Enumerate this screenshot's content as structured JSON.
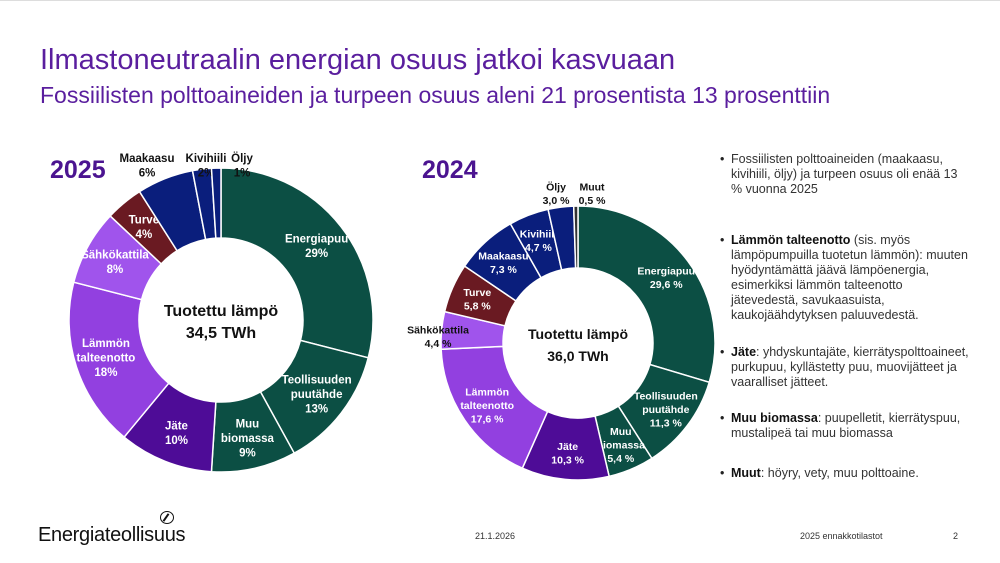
{
  "header": {
    "title": "Ilmastoneutraalin energian osuus jatkoi kasvuaan",
    "subtitle": "Fossiilisten polttoaineiden ja turpeen osuus aleni 21 prosentista 13 prosenttiin"
  },
  "chart_data": [
    {
      "type": "pie",
      "title": "2025",
      "center_label": "Tuotettu lämpö",
      "center_value": "34,5 TWh",
      "unit": "%",
      "slices": [
        {
          "name": "Energiapuu",
          "value": 29,
          "label": "29%",
          "color": "#0c4f44"
        },
        {
          "name": "Teollisuuden puutähde",
          "value": 13,
          "label": "13%",
          "color": "#0c4f44"
        },
        {
          "name": "Muu biomassa",
          "value": 9,
          "label": "9%",
          "color": "#0c4f44"
        },
        {
          "name": "Jäte",
          "value": 10,
          "label": "10%",
          "color": "#4e0c97"
        },
        {
          "name": "Lämmön talteenotto",
          "value": 18,
          "label": "18%",
          "color": "#9240e0"
        },
        {
          "name": "Sähkökattila",
          "value": 8,
          "label": "8%",
          "color": "#a054ec"
        },
        {
          "name": "Turve",
          "value": 4,
          "label": "4%",
          "color": "#6a1a22"
        },
        {
          "name": "Maakaasu",
          "value": 6,
          "label": "6%",
          "color": "#0a1e7c"
        },
        {
          "name": "Kivihiili",
          "value": 2,
          "label": "2%",
          "color": "#0a1e7c"
        },
        {
          "name": "Öljy",
          "value": 1,
          "label": "1%",
          "color": "#0a1e7c"
        }
      ]
    },
    {
      "type": "pie",
      "title": "2024",
      "center_label": "Tuotettu lämpö",
      "center_value": "36,0 TWh",
      "unit": "%",
      "slices": [
        {
          "name": "Energiapuu",
          "value": 29.6,
          "label": "29,6 %",
          "color": "#0c4f44"
        },
        {
          "name": "Teollisuuden puutähde",
          "value": 11.3,
          "label": "11,3 %",
          "color": "#0c4f44"
        },
        {
          "name": "Muu biomassa",
          "value": 5.4,
          "label": "5,4 %",
          "color": "#0c4f44"
        },
        {
          "name": "Jäte",
          "value": 10.3,
          "label": "10,3 %",
          "color": "#4e0c97"
        },
        {
          "name": "Lämmön talteenotto",
          "value": 17.6,
          "label": "17,6 %",
          "color": "#9240e0"
        },
        {
          "name": "Sähkökattila",
          "value": 4.4,
          "label": "4,4 %",
          "color": "#a054ec"
        },
        {
          "name": "Turve",
          "value": 5.8,
          "label": "5,8 %",
          "color": "#6a1a22"
        },
        {
          "name": "Maakaasu",
          "value": 7.3,
          "label": "7,3 %",
          "color": "#0a1e7c"
        },
        {
          "name": "Kivihiili",
          "value": 4.7,
          "label": "4,7 %",
          "color": "#0a1e7c"
        },
        {
          "name": "Öljy",
          "value": 3.0,
          "label": "3,0 %",
          "color": "#0a1e7c"
        },
        {
          "name": "Muut",
          "value": 0.5,
          "label": "0,5 %",
          "color": "#333333"
        }
      ]
    }
  ],
  "bullets": [
    {
      "bold": "",
      "text": "Fossiilisten polttoaineiden (maakaasu, kivihiili, öljy) ja turpeen osuus oli enää 13 % vuonna 2025"
    },
    {
      "bold": "Lämmön talteenotto",
      "text": " (sis. myös lämpöpumpuilla tuotetun lämmön): muuten hyödyntämättä jäävä lämpöenergia, esimerkiksi lämmön talteenotto jätevedestä, savukaasuista, kaukojäähdytyksen paluuvedestä."
    },
    {
      "bold": "Jäte",
      "text": ": yhdyskuntajäte, kierrätyspolttoaineet, purkupuu, kyllästetty puu, muovijätteet ja vaaralliset jätteet."
    },
    {
      "bold": "Muu biomassa",
      "text": ": puupelletit, kierrätyspuu, mustalipeä tai muu biomassa"
    },
    {
      "bold": "Muut",
      "text": ": höyry, vety, muu polttoaine."
    }
  ],
  "footer": {
    "logo": "Energiateollisuus",
    "date": "21.1.2026",
    "source": "2025 ennakkotilastot",
    "page": "2"
  }
}
